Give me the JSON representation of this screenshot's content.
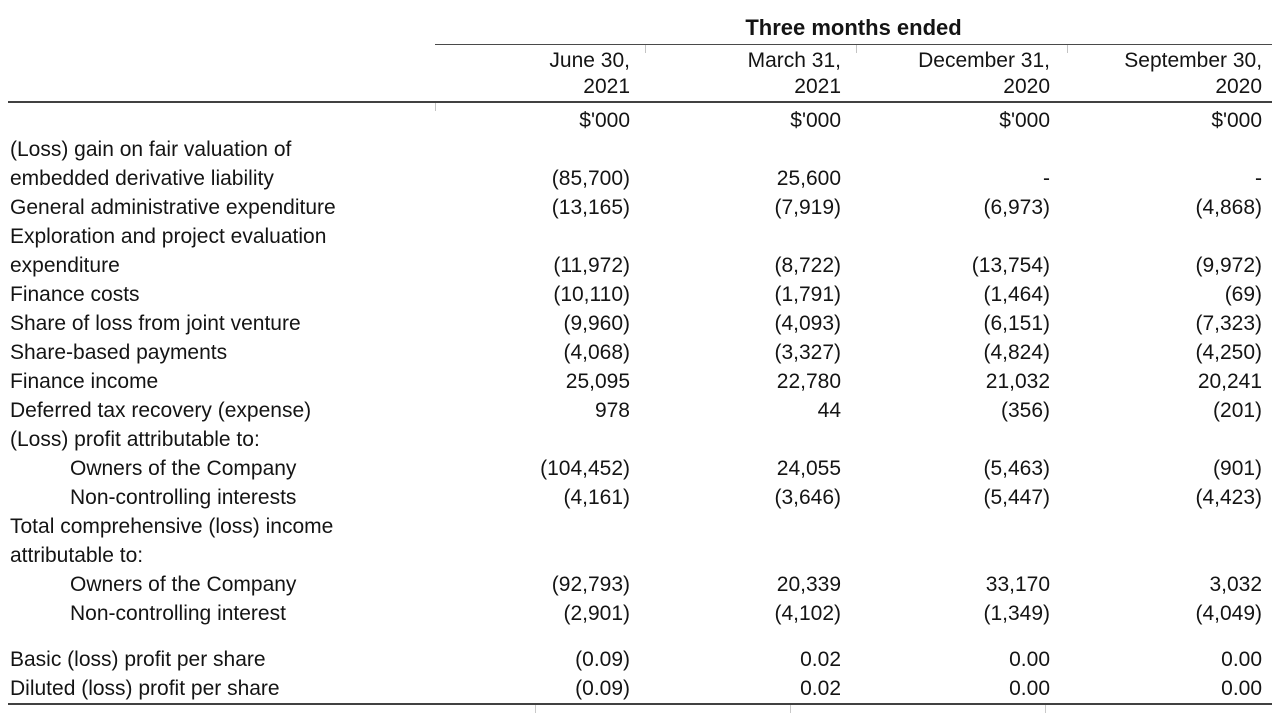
{
  "table": {
    "title": "Three months ended",
    "unit": "$'000",
    "columns": [
      "June 30,\n2021",
      "March 31,\n2021",
      "December 31,\n2020",
      "September 30,\n2020"
    ],
    "rows": [
      {
        "label": "(Loss) gain on fair valuation of\nembedded derivative liability",
        "values": [
          "(85,700)",
          "25,600",
          "-",
          "-"
        ]
      },
      {
        "label": "General administrative expenditure",
        "values": [
          "(13,165)",
          "(7,919)",
          "(6,973)",
          "(4,868)"
        ]
      },
      {
        "label": "Exploration and project evaluation\nexpenditure",
        "values": [
          "(11,972)",
          "(8,722)",
          "(13,754)",
          "(9,972)"
        ]
      },
      {
        "label": "Finance costs",
        "values": [
          "(10,110)",
          "(1,791)",
          "(1,464)",
          "(69)"
        ]
      },
      {
        "label": "Share of loss from joint venture",
        "values": [
          "(9,960)",
          "(4,093)",
          "(6,151)",
          "(7,323)"
        ]
      },
      {
        "label": "Share-based payments",
        "values": [
          "(4,068)",
          "(3,327)",
          "(4,824)",
          "(4,250)"
        ]
      },
      {
        "label": "Finance income",
        "values": [
          "25,095",
          "22,780",
          "21,032",
          "20,241"
        ]
      },
      {
        "label": "Deferred tax recovery (expense)",
        "values": [
          "978",
          "44",
          "(356)",
          "(201)"
        ]
      },
      {
        "label": "(Loss) profit attributable to:",
        "values": [
          "",
          "",
          "",
          ""
        ]
      },
      {
        "label": "Owners of the Company",
        "values": [
          "(104,452)",
          "24,055",
          "(5,463)",
          "(901)"
        ]
      },
      {
        "label": "Non-controlling interests",
        "values": [
          "(4,161)",
          "(3,646)",
          "(5,447)",
          "(4,423)"
        ]
      },
      {
        "label": "Total comprehensive (loss) income\nattributable to:",
        "values": [
          "",
          "",
          "",
          ""
        ]
      },
      {
        "label": "Owners of the Company",
        "values": [
          "(92,793)",
          "20,339",
          "33,170",
          "3,032"
        ]
      },
      {
        "label": "Non-controlling interest",
        "values": [
          "(2,901)",
          "(4,102)",
          "(1,349)",
          "(4,049)"
        ]
      },
      {
        "label": "Basic (loss) profit per share",
        "values": [
          "(0.09)",
          "0.02",
          "0.00",
          "0.00"
        ]
      },
      {
        "label": "Diluted (loss) profit per share",
        "values": [
          "(0.09)",
          "0.02",
          "0.00",
          "0.00"
        ]
      }
    ]
  }
}
